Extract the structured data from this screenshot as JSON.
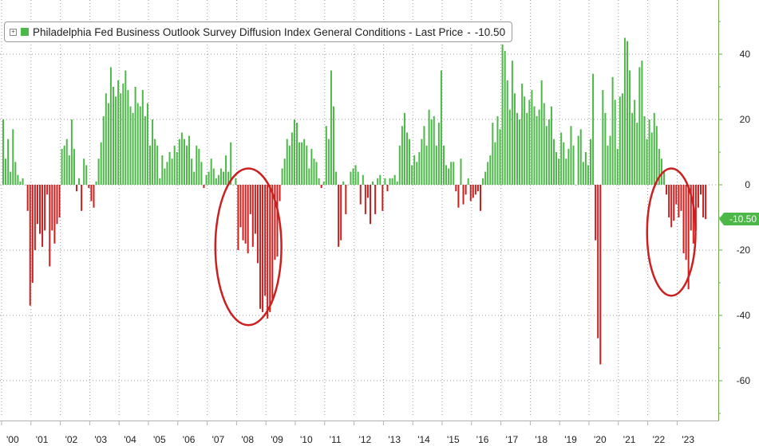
{
  "legend": {
    "toggle_glyph": "+",
    "label": "Philadelphia Fed Business Outlook Survey Diffusion Index General Conditions - Last Price",
    "last_price": "-10.50"
  },
  "last_price_tag": "-10.50",
  "colors": {
    "positive": "#4cb848",
    "negative": "#cc1f1f",
    "circle": "#cc1f1f",
    "grid": "#9a9a9a",
    "axis": "#6fa84a",
    "tag_bg": "#4cb848"
  },
  "chart_data": {
    "type": "bar",
    "title": "Philadelphia Fed Business Outlook Survey Diffusion Index General Conditions",
    "ylabel": "",
    "xlabel": "",
    "ylim": [
      -70,
      55
    ],
    "xlim": [
      2000.0,
      2023.95
    ],
    "y_ticks": [
      40,
      20,
      0,
      -20,
      -40,
      -60
    ],
    "y_tick_labels": [
      "40",
      "20",
      "0",
      "-20",
      "-40",
      "-60"
    ],
    "x_ticks": [
      {
        "year": 2000,
        "label": "'00"
      },
      {
        "year": 2001,
        "label": "'01"
      },
      {
        "year": 2002,
        "label": "'02"
      },
      {
        "year": 2003,
        "label": "'03"
      },
      {
        "year": 2004,
        "label": "'04"
      },
      {
        "year": 2005,
        "label": "'05"
      },
      {
        "year": 2006,
        "label": "'06"
      },
      {
        "year": 2007,
        "label": "'07"
      },
      {
        "year": 2008,
        "label": "'08"
      },
      {
        "year": 2009,
        "label": "'09"
      },
      {
        "year": 2010,
        "label": "'10"
      },
      {
        "year": 2011,
        "label": "'11"
      },
      {
        "year": 2012,
        "label": "'12"
      },
      {
        "year": 2013,
        "label": "'13"
      },
      {
        "year": 2014,
        "label": "'14"
      },
      {
        "year": 2015,
        "label": "'15"
      },
      {
        "year": 2016,
        "label": "'16"
      },
      {
        "year": 2017,
        "label": "'17"
      },
      {
        "year": 2018,
        "label": "'18"
      },
      {
        "year": 2019,
        "label": "'19"
      },
      {
        "year": 2020,
        "label": "'20"
      },
      {
        "year": 2021,
        "label": "'21"
      },
      {
        "year": 2022,
        "label": "'22"
      },
      {
        "year": 2023,
        "label": "'23"
      }
    ],
    "start": {
      "year": 2000,
      "month": 1
    },
    "last_value": -10.5,
    "series": [
      {
        "name": "General Conditions Diffusion Index",
        "frequency": "monthly",
        "values": [
          20,
          8,
          14,
          4,
          17,
          7,
          3,
          1,
          2,
          0,
          -8,
          -37,
          -30,
          -20,
          -12,
          -15,
          -19,
          -14,
          -3,
          -25,
          -14,
          -18,
          -12,
          -10,
          11,
          12,
          14,
          9,
          20,
          11,
          -2,
          2,
          -8,
          8,
          6,
          -1,
          -5,
          -7,
          1,
          8,
          13,
          21,
          28,
          25,
          36,
          30,
          27,
          32,
          28,
          31,
          35,
          29,
          24,
          22,
          30,
          25,
          24,
          29,
          21,
          25,
          12,
          20,
          14,
          12,
          2,
          9,
          5,
          7,
          10,
          8,
          12,
          10,
          14,
          16,
          14,
          12,
          15,
          8,
          4,
          12,
          11,
          7,
          -1,
          3,
          4,
          8,
          5,
          2,
          3,
          5,
          4,
          9,
          4,
          13,
          0,
          2,
          -20,
          -13,
          -17,
          -18,
          -21,
          -9,
          -19,
          -15,
          -24,
          -38,
          -39,
          -34,
          -41,
          -39,
          -35,
          -23,
          -22,
          -5,
          5,
          8,
          14,
          12,
          16,
          20,
          19,
          13,
          13,
          14,
          12,
          5,
          11,
          8,
          7,
          2,
          -1,
          1,
          18,
          14,
          35,
          24,
          4,
          -19,
          -17,
          1,
          -9,
          0,
          4,
          5,
          6,
          4,
          -6,
          3,
          -9,
          -4,
          -12,
          1,
          -9,
          2,
          3,
          -8,
          2,
          -2,
          2,
          2,
          3,
          1,
          12,
          18,
          22,
          16,
          14,
          6,
          9,
          7,
          10,
          14,
          18,
          12,
          23,
          20,
          21,
          12,
          19,
          35,
          12,
          6,
          5,
          7,
          7,
          -2,
          -7,
          8,
          -6,
          -3,
          2,
          -5,
          -4,
          -3,
          -2,
          -8,
          2,
          4,
          7,
          9,
          19,
          13,
          21,
          17,
          43,
          41,
          32,
          23,
          38,
          28,
          22,
          20,
          31,
          27,
          22,
          26,
          29,
          24,
          21,
          23,
          32,
          25,
          18,
          20,
          24,
          14,
          10,
          8,
          16,
          13,
          8,
          11,
          18,
          12,
          0,
          15,
          17,
          7,
          10,
          6,
          14,
          34,
          -17,
          -47,
          -55,
          29,
          22,
          12,
          15,
          33,
          26,
          11,
          27,
          28,
          45,
          44,
          35,
          22,
          26,
          19,
          36,
          38,
          21,
          14,
          20,
          16,
          22,
          18,
          11,
          8,
          4,
          -3,
          -10,
          -13,
          -11,
          -6,
          -10,
          -8,
          -21,
          -23,
          -32,
          -14,
          -18,
          -14,
          -7,
          -3,
          -10,
          -10.5
        ]
      }
    ],
    "annotations": [
      {
        "type": "ellipse",
        "label": "2008-09 circled",
        "from_year": 2007.25,
        "to_year": 2009.5,
        "y_low": -43,
        "y_high": 5
      },
      {
        "type": "ellipse",
        "label": "2022-23 circled",
        "from_year": 2021.95,
        "to_year": 2023.6,
        "y_low": -34,
        "y_high": 5
      }
    ]
  }
}
